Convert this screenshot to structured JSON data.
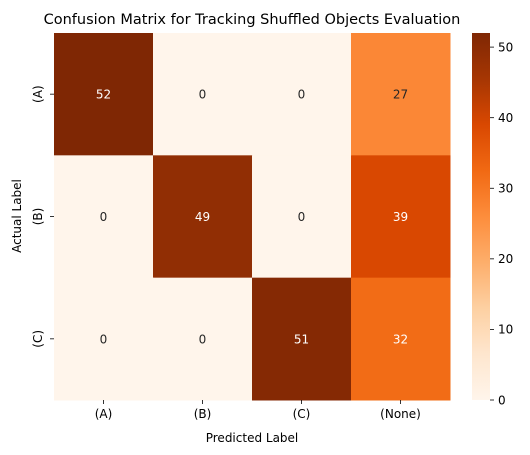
{
  "chart_data": {
    "type": "heatmap",
    "title": "Confusion Matrix for Tracking Shuffled Objects Evaluation",
    "xlabel": "Predicted Label",
    "ylabel": "Actual Label",
    "x_categories": [
      "(A)",
      "(B)",
      "(C)",
      "(None)"
    ],
    "y_categories": [
      "(A)",
      "(B)",
      "(C)"
    ],
    "values": [
      [
        52,
        0,
        0,
        27
      ],
      [
        0,
        49,
        0,
        39
      ],
      [
        0,
        0,
        51,
        32
      ]
    ],
    "colorbar": {
      "min": 0,
      "max": 52,
      "ticks": [
        0,
        10,
        20,
        30,
        40,
        50
      ],
      "colormap": "Oranges",
      "low_color": "#fff5eb",
      "high_color": "#7f2704"
    },
    "grid": false
  }
}
